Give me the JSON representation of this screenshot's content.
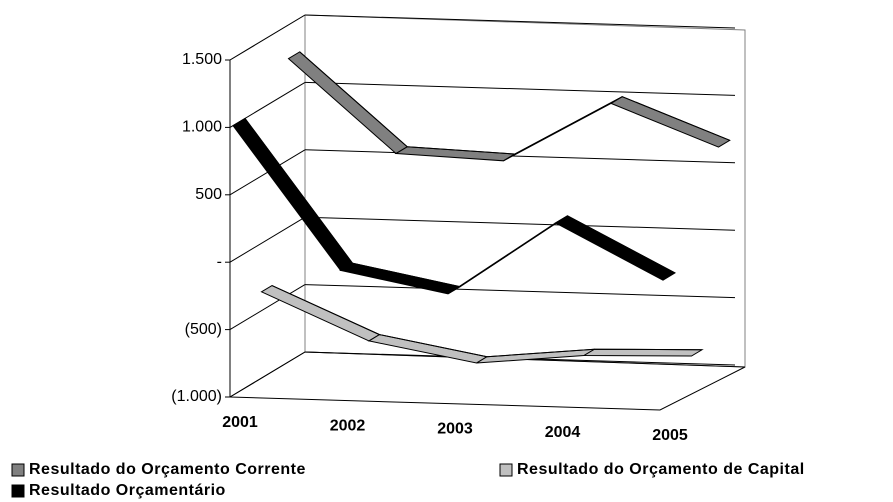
{
  "chart_data": {
    "type": "line",
    "categories": [
      "2001",
      "2002",
      "2003",
      "2004",
      "2005"
    ],
    "series": [
      {
        "name": "Resultado do Orçamento Corrente",
        "color": "#808080",
        "values": [
          1250,
          570,
          540,
          990,
          690
        ]
      },
      {
        "name": "Resultado do Orçamento de Capital",
        "color": "#c0c0c0",
        "values": [
          -360,
          -700,
          -840,
          -760,
          -740
        ]
      },
      {
        "name": "Resultado Orçamentário",
        "color": "#000000",
        "values": [
          1000,
          -50,
          -200,
          350,
          -50
        ]
      }
    ],
    "ylim": [
      -1000,
      1500
    ],
    "yticks": [
      {
        "value": 1500,
        "label": "1.500"
      },
      {
        "value": 1000,
        "label": "1.000"
      },
      500,
      {
        "value": 0,
        "label": "-"
      },
      {
        "value": -500,
        "label": "(500)"
      },
      {
        "value": -1000,
        "label": "(1.000)"
      }
    ],
    "grid": true
  }
}
